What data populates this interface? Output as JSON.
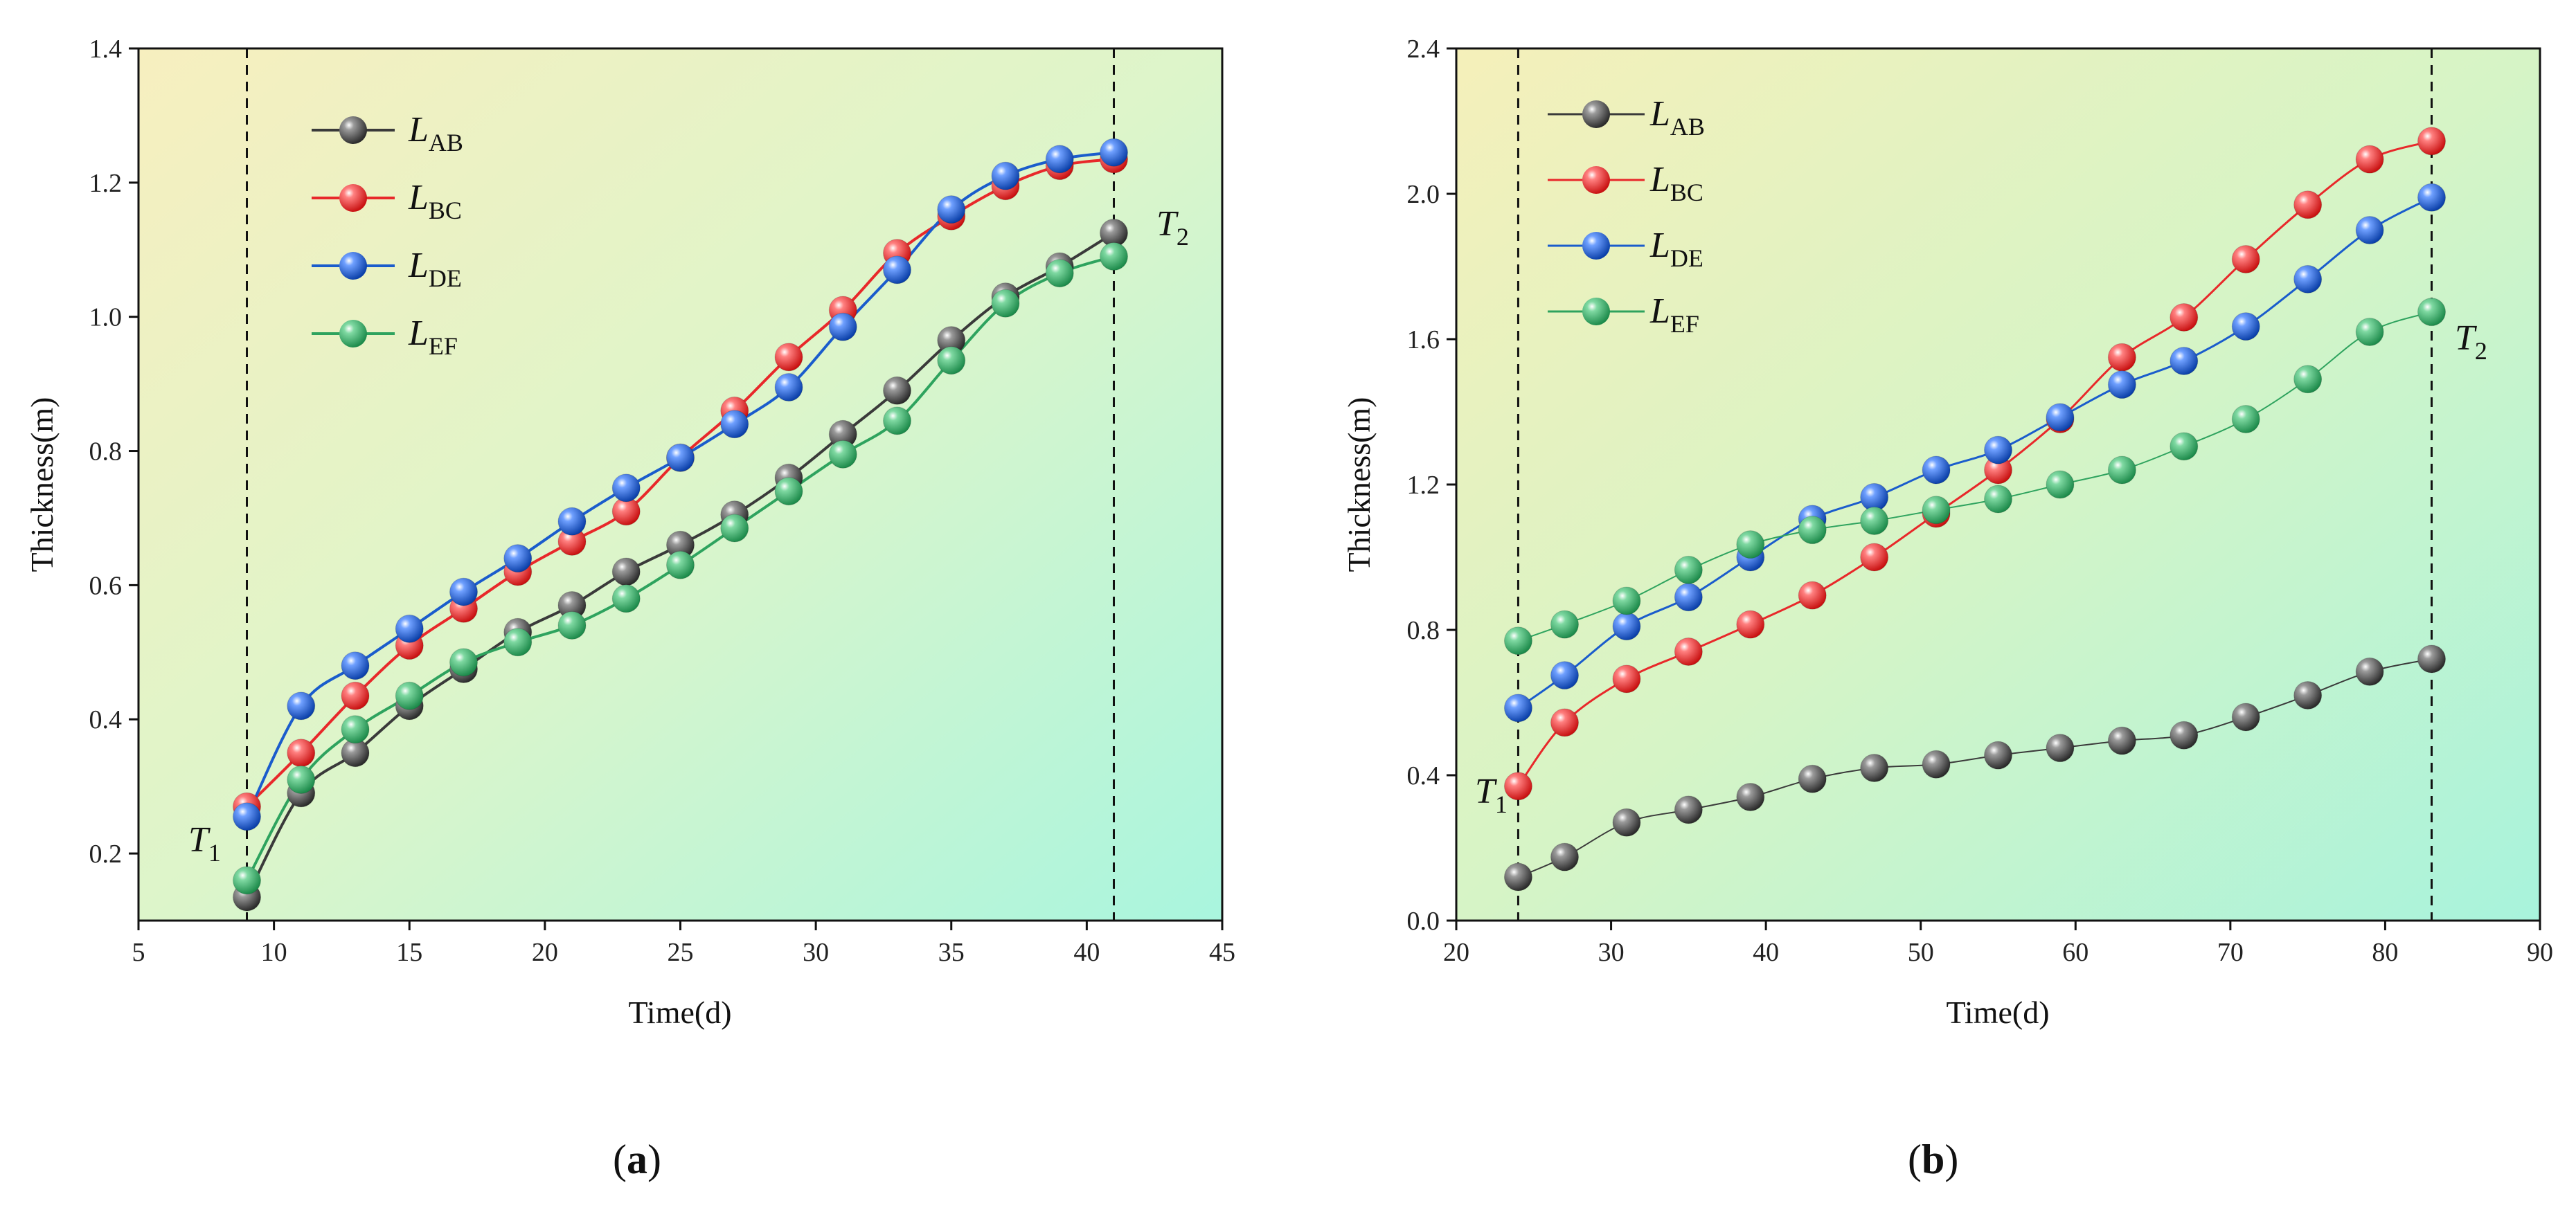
{
  "chart_data": [
    {
      "type": "line",
      "panel_label": "(a)",
      "panel_letter": "a",
      "xlabel": "Time(d)",
      "ylabel": "Thickness(m)",
      "xlim": [
        5,
        45
      ],
      "ylim": [
        0.1,
        1.4
      ],
      "xticks": [
        5,
        10,
        15,
        20,
        25,
        30,
        35,
        40,
        45
      ],
      "xtick_labels": [
        "5",
        "10",
        "15",
        "20",
        "25",
        "30",
        "35",
        "40",
        "45"
      ],
      "yticks": [
        0.2,
        0.4,
        0.6,
        0.8,
        1.0,
        1.2,
        1.4
      ],
      "ytick_labels": [
        "0.2",
        "0.4",
        "0.6",
        "0.8",
        "1.0",
        "1.2",
        "1.4"
      ],
      "vlines": [
        9,
        41
      ],
      "annotations": [
        {
          "main": "T",
          "sub": "1"
        },
        {
          "main": "T",
          "sub": "2"
        }
      ],
      "series": [
        {
          "name": "L_AB",
          "main": "L",
          "sub": "AB",
          "color": "#3a3a3a",
          "x": [
            9,
            11,
            13,
            15,
            17,
            19,
            21,
            23,
            25,
            27,
            29,
            31,
            33,
            35,
            37,
            39,
            41
          ],
          "y": [
            0.135,
            0.29,
            0.35,
            0.42,
            0.475,
            0.53,
            0.57,
            0.62,
            0.66,
            0.705,
            0.76,
            0.825,
            0.89,
            0.965,
            1.03,
            1.075,
            1.125
          ]
        },
        {
          "name": "L_BC",
          "main": "L",
          "sub": "BC",
          "color": "#e8282a",
          "x": [
            9,
            11,
            13,
            15,
            17,
            19,
            21,
            23,
            25,
            27,
            29,
            31,
            33,
            35,
            37,
            39,
            41
          ],
          "y": [
            0.27,
            0.35,
            0.435,
            0.51,
            0.565,
            0.62,
            0.665,
            0.71,
            0.79,
            0.86,
            0.94,
            1.01,
            1.095,
            1.15,
            1.195,
            1.225,
            1.235
          ]
        },
        {
          "name": "L_DE",
          "main": "L",
          "sub": "DE",
          "color": "#1a5ccc",
          "x": [
            9,
            11,
            13,
            15,
            17,
            19,
            21,
            23,
            25,
            27,
            29,
            31,
            33,
            35,
            37,
            39,
            41
          ],
          "y": [
            0.255,
            0.42,
            0.48,
            0.535,
            0.59,
            0.64,
            0.695,
            0.745,
            0.79,
            0.84,
            0.895,
            0.985,
            1.07,
            1.16,
            1.21,
            1.235,
            1.245
          ]
        },
        {
          "name": "L_EF",
          "main": "L",
          "sub": "EF",
          "color": "#2ea35e",
          "x": [
            9,
            11,
            13,
            15,
            17,
            19,
            21,
            23,
            25,
            27,
            29,
            31,
            33,
            35,
            37,
            39,
            41
          ],
          "y": [
            0.16,
            0.31,
            0.385,
            0.435,
            0.485,
            0.515,
            0.54,
            0.58,
            0.63,
            0.685,
            0.74,
            0.795,
            0.845,
            0.935,
            1.02,
            1.065,
            1.09
          ]
        }
      ]
    },
    {
      "type": "line",
      "panel_label": "(b)",
      "panel_letter": "b",
      "xlabel": "Time(d)",
      "ylabel": "Thickness(m)",
      "xlim": [
        20,
        90
      ],
      "ylim": [
        0.0,
        2.4
      ],
      "xticks": [
        20,
        30,
        40,
        50,
        60,
        70,
        80,
        90
      ],
      "xtick_labels": [
        "20",
        "30",
        "40",
        "50",
        "60",
        "70",
        "80",
        "90"
      ],
      "yticks": [
        0.0,
        0.4,
        0.8,
        1.2,
        1.6,
        2.0,
        2.4
      ],
      "ytick_labels": [
        "0.0",
        "0.4",
        "0.8",
        "1.2",
        "1.6",
        "2.0",
        "2.4"
      ],
      "vlines": [
        24,
        83
      ],
      "annotations": [
        {
          "main": "T",
          "sub": "1"
        },
        {
          "main": "T",
          "sub": "2"
        }
      ],
      "series": [
        {
          "name": "L_AB",
          "main": "L",
          "sub": "AB",
          "color": "#3a3a3a",
          "x": [
            24,
            27,
            31,
            35,
            39,
            43,
            47,
            51,
            55,
            59,
            63,
            67,
            71,
            75,
            79,
            83
          ],
          "y": [
            0.12,
            0.175,
            0.27,
            0.305,
            0.34,
            0.39,
            0.42,
            0.43,
            0.455,
            0.475,
            0.495,
            0.51,
            0.56,
            0.62,
            0.685,
            0.72
          ]
        },
        {
          "name": "L_BC",
          "main": "L",
          "sub": "BC",
          "color": "#e8282a",
          "x": [
            24,
            27,
            31,
            35,
            39,
            43,
            47,
            51,
            55,
            59,
            63,
            67,
            71,
            75,
            79,
            83
          ],
          "y": [
            0.37,
            0.545,
            0.665,
            0.74,
            0.815,
            0.895,
            1.0,
            1.12,
            1.24,
            1.38,
            1.55,
            1.66,
            1.82,
            1.97,
            2.095,
            2.145
          ]
        },
        {
          "name": "L_DE",
          "main": "L",
          "sub": "DE",
          "color": "#1a5ccc",
          "x": [
            24,
            27,
            31,
            35,
            39,
            43,
            47,
            51,
            55,
            59,
            63,
            67,
            71,
            75,
            79,
            83
          ],
          "y": [
            0.585,
            0.675,
            0.81,
            0.89,
            1.0,
            1.105,
            1.165,
            1.24,
            1.295,
            1.385,
            1.475,
            1.54,
            1.635,
            1.765,
            1.9,
            1.99
          ]
        },
        {
          "name": "L_EF",
          "main": "L",
          "sub": "EF",
          "color": "#2ea35e",
          "x": [
            24,
            27,
            31,
            35,
            39,
            43,
            47,
            51,
            55,
            59,
            63,
            67,
            71,
            75,
            79,
            83
          ],
          "y": [
            0.77,
            0.815,
            0.88,
            0.965,
            1.035,
            1.075,
            1.1,
            1.13,
            1.16,
            1.2,
            1.24,
            1.305,
            1.38,
            1.49,
            1.62,
            1.675
          ]
        }
      ]
    }
  ]
}
